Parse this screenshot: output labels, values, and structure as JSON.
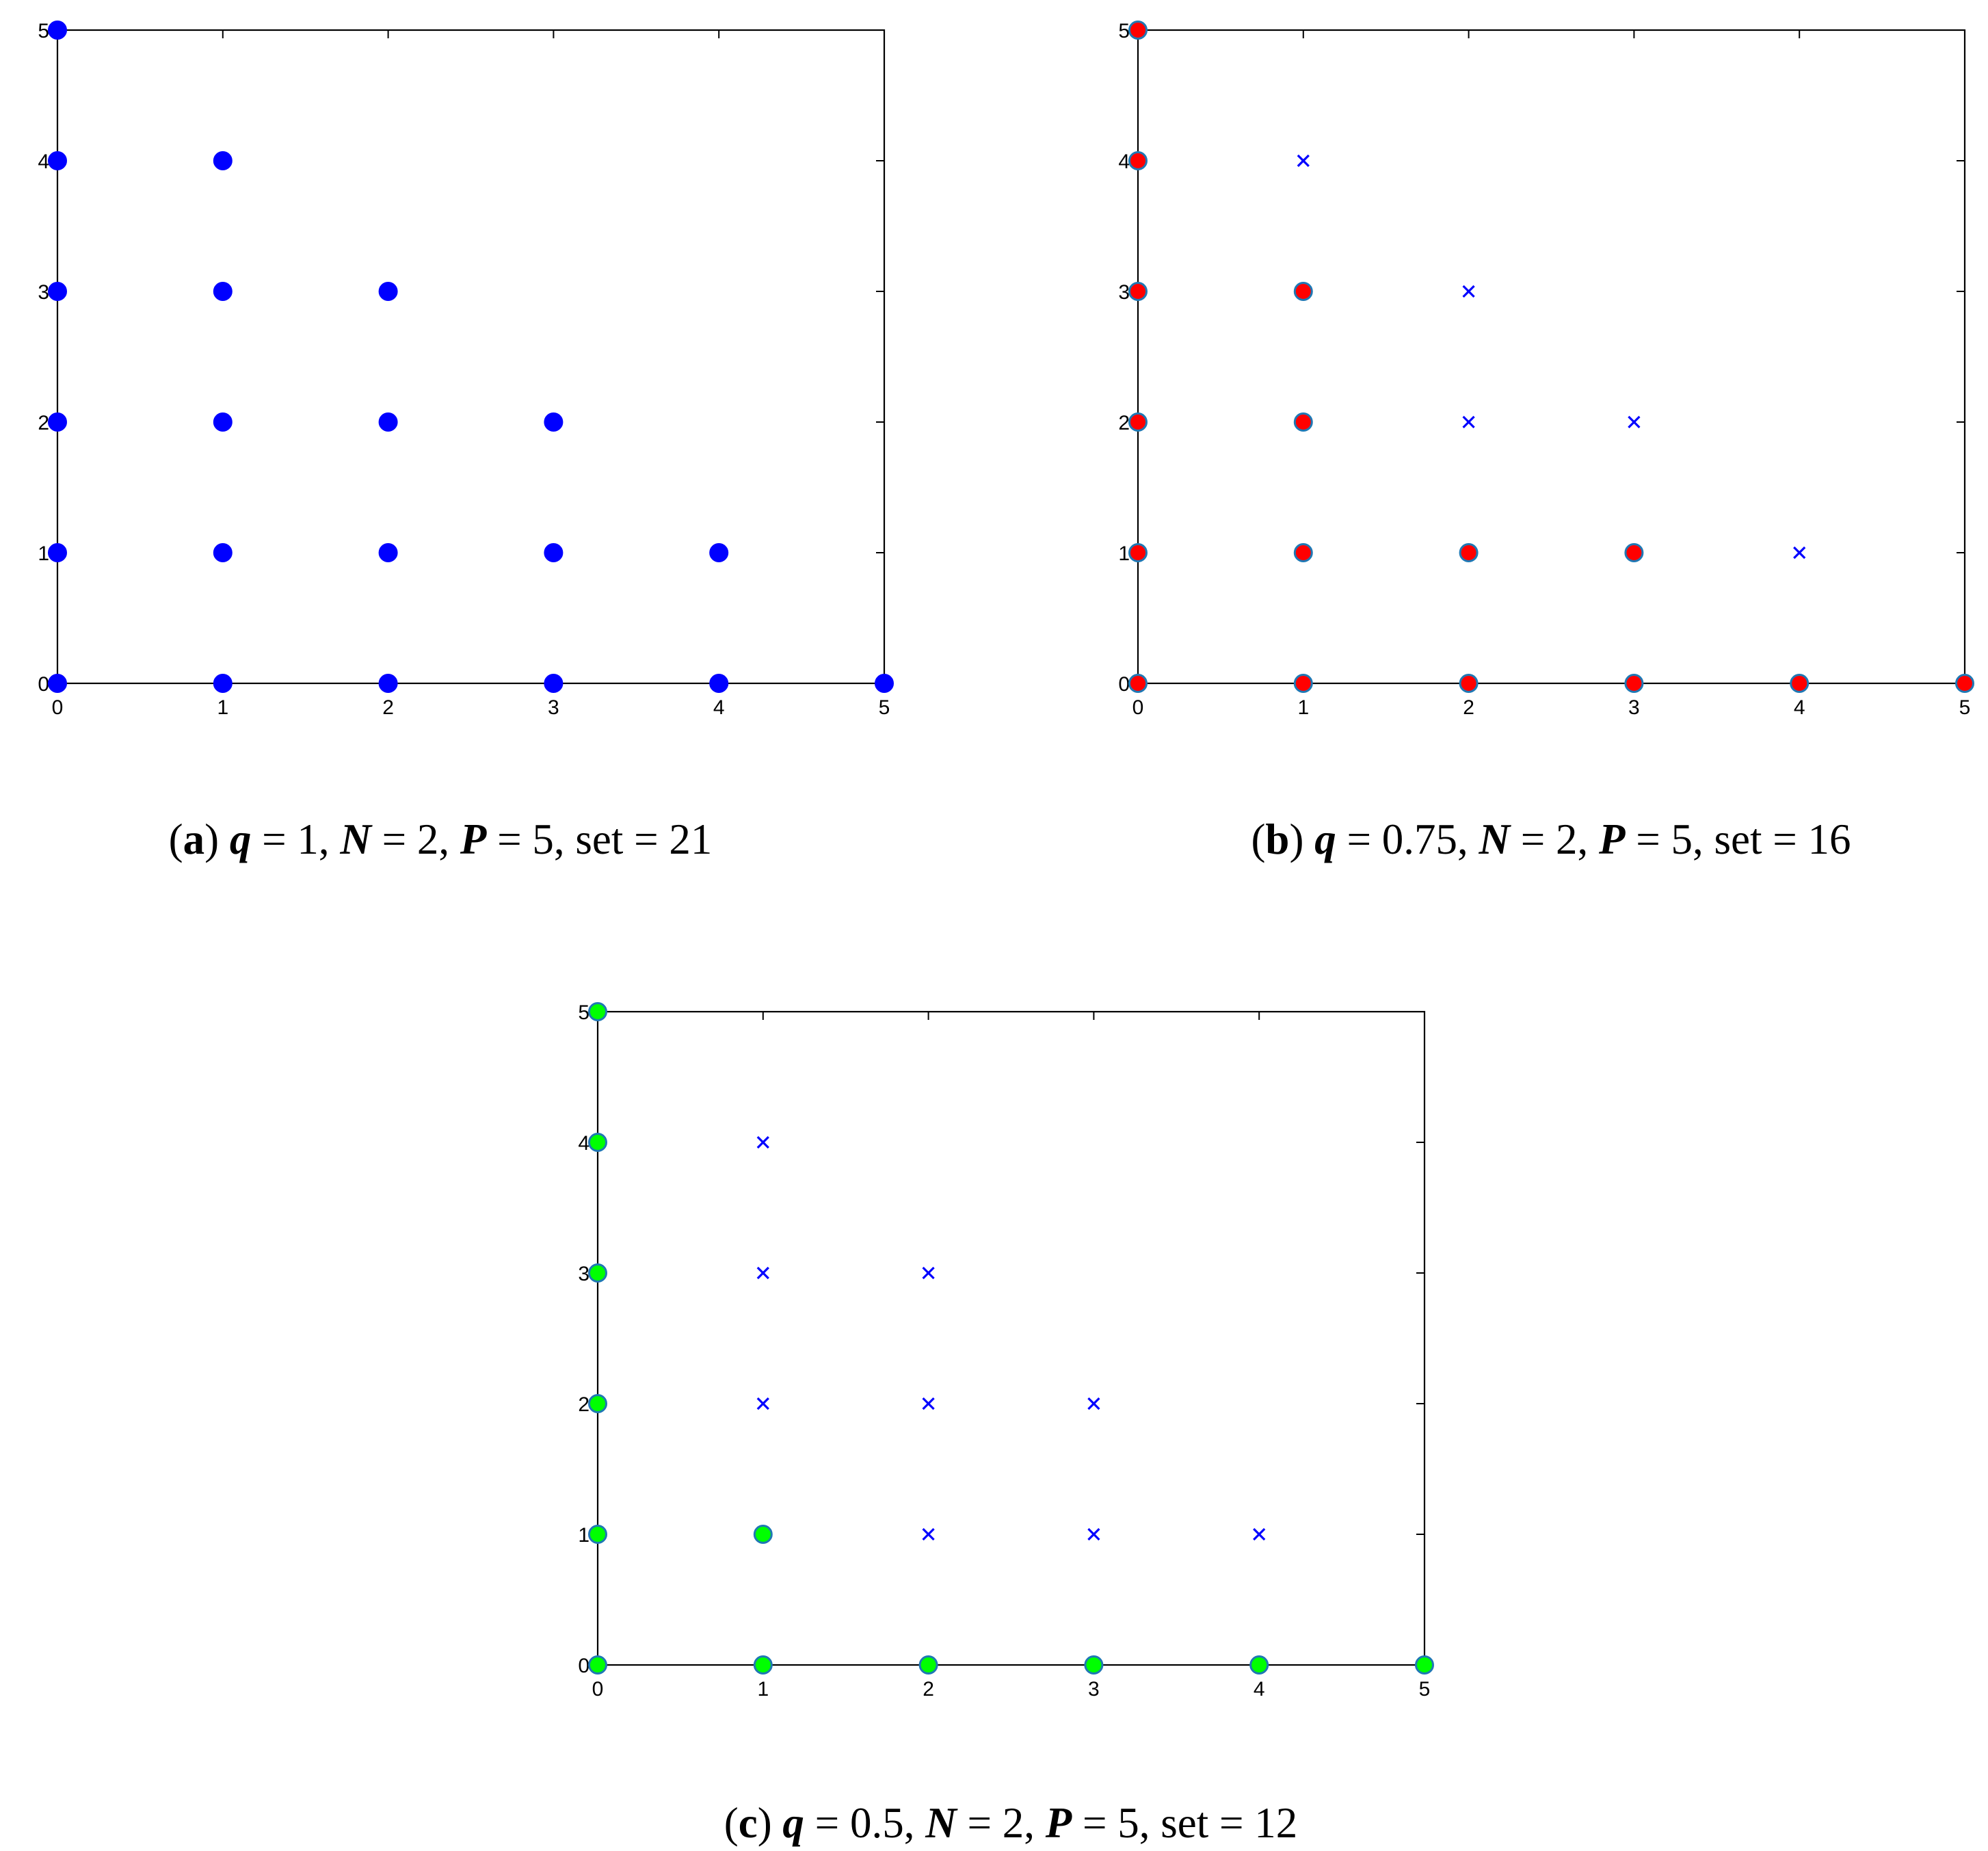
{
  "chart_data": [
    {
      "id": "a",
      "type": "scatter",
      "xlim": [
        0,
        5
      ],
      "ylim": [
        0,
        5
      ],
      "x_ticks": [
        "0",
        "1",
        "2",
        "3",
        "4",
        "5"
      ],
      "y_ticks": [
        "0",
        "1",
        "2",
        "3",
        "4",
        "5"
      ],
      "grid": false,
      "caption": {
        "label": "a",
        "q_symbol": "q",
        "q_value": " = 1, ",
        "n_symbol": "N",
        "n_value": " = 2, ",
        "p_symbol": "P",
        "p_value": " = 5, ",
        "set_text": "set = 21"
      },
      "series": [
        {
          "marker": "dot",
          "fill": "#0000ff",
          "edge": "#0000ff",
          "points": [
            [
              0,
              0
            ],
            [
              1,
              0
            ],
            [
              2,
              0
            ],
            [
              3,
              0
            ],
            [
              4,
              0
            ],
            [
              5,
              0
            ],
            [
              0,
              1
            ],
            [
              1,
              1
            ],
            [
              2,
              1
            ],
            [
              3,
              1
            ],
            [
              4,
              1
            ],
            [
              0,
              2
            ],
            [
              1,
              2
            ],
            [
              2,
              2
            ],
            [
              3,
              2
            ],
            [
              0,
              3
            ],
            [
              1,
              3
            ],
            [
              2,
              3
            ],
            [
              0,
              4
            ],
            [
              1,
              4
            ],
            [
              0,
              5
            ]
          ]
        }
      ]
    },
    {
      "id": "b",
      "type": "scatter",
      "xlim": [
        0,
        5
      ],
      "ylim": [
        0,
        5
      ],
      "x_ticks": [
        "0",
        "1",
        "2",
        "3",
        "4",
        "5"
      ],
      "y_ticks": [
        "0",
        "1",
        "2",
        "3",
        "4",
        "5"
      ],
      "grid": false,
      "caption": {
        "label": "b",
        "q_symbol": "q",
        "q_value": " = 0.75, ",
        "n_symbol": "N",
        "n_value": " = 2, ",
        "p_symbol": "P",
        "p_value": " = 5, ",
        "set_text": "set = 16"
      },
      "series": [
        {
          "marker": "dot",
          "fill": "#ff0000",
          "edge": "#1f78b4",
          "points": [
            [
              0,
              0
            ],
            [
              1,
              0
            ],
            [
              2,
              0
            ],
            [
              3,
              0
            ],
            [
              4,
              0
            ],
            [
              5,
              0
            ],
            [
              0,
              1
            ],
            [
              1,
              1
            ],
            [
              2,
              1
            ],
            [
              3,
              1
            ],
            [
              0,
              2
            ],
            [
              1,
              2
            ],
            [
              0,
              3
            ],
            [
              1,
              3
            ],
            [
              0,
              4
            ],
            [
              0,
              5
            ]
          ]
        },
        {
          "marker": "cross",
          "fill": "#0000ff",
          "edge": "#0000ff",
          "points": [
            [
              4,
              1
            ],
            [
              2,
              2
            ],
            [
              3,
              2
            ],
            [
              2,
              3
            ],
            [
              1,
              4
            ]
          ]
        }
      ]
    },
    {
      "id": "c",
      "type": "scatter",
      "xlim": [
        0,
        5
      ],
      "ylim": [
        0,
        5
      ],
      "x_ticks": [
        "0",
        "1",
        "2",
        "3",
        "4",
        "5"
      ],
      "y_ticks": [
        "0",
        "1",
        "2",
        "3",
        "4",
        "5"
      ],
      "grid": false,
      "caption": {
        "label": "c",
        "q_symbol": "q",
        "q_value": " = 0.5, ",
        "n_symbol": "N",
        "n_value": " = 2, ",
        "p_symbol": "P",
        "p_value": " = 5, ",
        "set_text": "set = 12"
      },
      "series": [
        {
          "marker": "dot",
          "fill": "#00ff00",
          "edge": "#1f78b4",
          "points": [
            [
              0,
              0
            ],
            [
              1,
              0
            ],
            [
              2,
              0
            ],
            [
              3,
              0
            ],
            [
              4,
              0
            ],
            [
              5,
              0
            ],
            [
              0,
              1
            ],
            [
              1,
              1
            ],
            [
              0,
              2
            ],
            [
              0,
              3
            ],
            [
              0,
              4
            ],
            [
              0,
              5
            ]
          ]
        },
        {
          "marker": "cross",
          "fill": "#0000ff",
          "edge": "#0000ff",
          "points": [
            [
              2,
              1
            ],
            [
              3,
              1
            ],
            [
              4,
              1
            ],
            [
              1,
              2
            ],
            [
              2,
              2
            ],
            [
              3,
              2
            ],
            [
              1,
              3
            ],
            [
              2,
              3
            ],
            [
              1,
              4
            ]
          ]
        }
      ]
    }
  ]
}
